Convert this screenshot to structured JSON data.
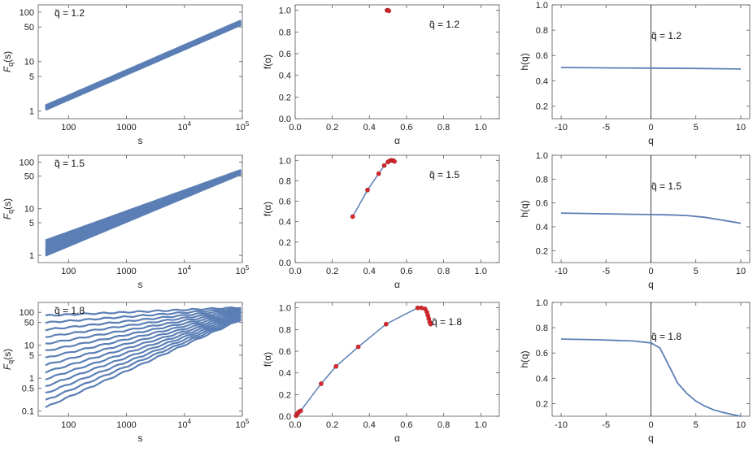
{
  "panels": [
    {
      "type": "line",
      "log": true,
      "row": 0,
      "col": 0,
      "xlabel": "s",
      "ylabel": "F_q(s)",
      "xticks": [
        "100",
        "1000",
        "10^4",
        "10^5"
      ],
      "yticks": [
        "1",
        "5",
        "10",
        "50",
        "100"
      ],
      "xlim": [
        30,
        100000
      ],
      "ylim": [
        0.7,
        140
      ],
      "annotation": "q̃  =  1.2",
      "bundle": {
        "start_low": 1.05,
        "start_high": 1.3,
        "end_low": 55,
        "end_high": 68
      }
    },
    {
      "type": "scatter",
      "row": 0,
      "col": 1,
      "xlabel": "α",
      "ylabel": "f(α)",
      "xticks": [
        "0.0",
        "0.2",
        "0.4",
        "0.6",
        "0.8",
        "1.0"
      ],
      "yticks": [
        "0.0",
        "0.2",
        "0.4",
        "0.6",
        "0.8",
        "1.0"
      ],
      "xlim": [
        0,
        1.1
      ],
      "ylim": [
        0,
        1.05
      ],
      "annotation": "q̃  =  1.2",
      "points": [
        [
          0.495,
          1.0
        ],
        [
          0.5,
          1.0
        ],
        [
          0.505,
          0.995
        ]
      ]
    },
    {
      "type": "line",
      "row": 0,
      "col": 2,
      "xlabel": "q",
      "ylabel": "h(q)",
      "xticks": [
        "-10",
        "-5",
        "0",
        "5",
        "10"
      ],
      "yticks": [
        "0.2",
        "0.4",
        "0.6",
        "0.8",
        "1.0"
      ],
      "xlim": [
        -11,
        11
      ],
      "ylim": [
        0.1,
        1.0
      ],
      "annotation": "q̃  =  1.2",
      "x": [
        -10,
        -5,
        0,
        5,
        10
      ],
      "y": [
        0.505,
        0.502,
        0.5,
        0.497,
        0.493
      ]
    },
    {
      "type": "line",
      "log": true,
      "row": 1,
      "col": 0,
      "xlabel": "s",
      "ylabel": "F_q(s)",
      "xticks": [
        "100",
        "1000",
        "10^4",
        "10^5"
      ],
      "yticks": [
        "1",
        "5",
        "10",
        "50",
        "100"
      ],
      "xlim": [
        30,
        100000
      ],
      "ylim": [
        0.7,
        140
      ],
      "annotation": "q̃  =  1.5",
      "bundle": {
        "start_low": 0.98,
        "start_high": 2.1,
        "end_low": 55,
        "end_high": 68
      }
    },
    {
      "type": "scatter",
      "row": 1,
      "col": 1,
      "xlabel": "α",
      "ylabel": "f(α)",
      "xticks": [
        "0.0",
        "0.2",
        "0.4",
        "0.6",
        "0.8",
        "1.0"
      ],
      "yticks": [
        "0.0",
        "0.2",
        "0.4",
        "0.6",
        "0.8",
        "1.0"
      ],
      "xlim": [
        0,
        1.1
      ],
      "ylim": [
        0,
        1.05
      ],
      "annotation": "q̃  =  1.5",
      "points": [
        [
          0.31,
          0.45
        ],
        [
          0.39,
          0.71
        ],
        [
          0.45,
          0.87
        ],
        [
          0.48,
          0.95
        ],
        [
          0.5,
          0.985
        ],
        [
          0.51,
          0.997
        ],
        [
          0.52,
          1.0
        ],
        [
          0.53,
          0.997
        ],
        [
          0.535,
          0.99
        ]
      ]
    },
    {
      "type": "line",
      "row": 1,
      "col": 2,
      "xlabel": "q",
      "ylabel": "h(q)",
      "xticks": [
        "-10",
        "-5",
        "0",
        "5",
        "10"
      ],
      "yticks": [
        "0.2",
        "0.4",
        "0.6",
        "0.8",
        "1.0"
      ],
      "xlim": [
        -11,
        11
      ],
      "ylim": [
        0.1,
        1.0
      ],
      "annotation": "q̃  =  1.5",
      "x": [
        -10,
        -6,
        -2,
        0,
        2,
        4,
        6,
        8,
        10
      ],
      "y": [
        0.515,
        0.51,
        0.505,
        0.503,
        0.5,
        0.495,
        0.48,
        0.455,
        0.43
      ]
    },
    {
      "type": "line",
      "log": true,
      "row": 2,
      "col": 0,
      "xlabel": "s",
      "ylabel": "F_q(s)",
      "xticks": [
        "100",
        "1000",
        "10^4",
        "10^5"
      ],
      "yticks": [
        "0.1",
        "0.5",
        "1",
        "5",
        "10",
        "50",
        "100"
      ],
      "xlim": [
        30,
        100000
      ],
      "ylim": [
        0.07,
        200
      ],
      "annotation": "q̃  =  1.8",
      "bundle": {
        "start_low": 0.13,
        "start_high": 80,
        "end_low": 60,
        "end_high": 140
      }
    },
    {
      "type": "scatter",
      "row": 2,
      "col": 1,
      "xlabel": "α",
      "ylabel": "f(α)",
      "xticks": [
        "0.0",
        "0.2",
        "0.4",
        "0.6",
        "0.8",
        "1.0"
      ],
      "yticks": [
        "0.0",
        "0.2",
        "0.4",
        "0.6",
        "0.8",
        "1.0"
      ],
      "xlim": [
        0,
        1.1
      ],
      "ylim": [
        0,
        1.05
      ],
      "annotation": "q̃  =  1.8",
      "points": [
        [
          0.005,
          0.005
        ],
        [
          0.01,
          0.02
        ],
        [
          0.015,
          0.03
        ],
        [
          0.02,
          0.04
        ],
        [
          0.03,
          0.05
        ],
        [
          0.14,
          0.3
        ],
        [
          0.22,
          0.46
        ],
        [
          0.34,
          0.64
        ],
        [
          0.49,
          0.85
        ],
        [
          0.66,
          1.0
        ],
        [
          0.68,
          1.0
        ],
        [
          0.7,
          0.99
        ],
        [
          0.71,
          0.96
        ],
        [
          0.715,
          0.93
        ],
        [
          0.72,
          0.9
        ],
        [
          0.725,
          0.87
        ],
        [
          0.73,
          0.85
        ]
      ]
    },
    {
      "type": "line",
      "row": 2,
      "col": 2,
      "xlabel": "q",
      "ylabel": "h(q)",
      "xticks": [
        "-10",
        "-5",
        "0",
        "5",
        "10"
      ],
      "yticks": [
        "0.2",
        "0.4",
        "0.6",
        "0.8",
        "1.0"
      ],
      "xlim": [
        -11,
        11
      ],
      "ylim": [
        0.1,
        1.0
      ],
      "annotation": "q̃  =  1.8",
      "x": [
        -10,
        -6,
        -4,
        -2,
        0,
        1,
        2,
        3,
        4,
        5,
        6,
        7,
        8,
        9,
        10
      ],
      "y": [
        0.71,
        0.705,
        0.7,
        0.695,
        0.68,
        0.64,
        0.5,
        0.36,
        0.28,
        0.22,
        0.18,
        0.15,
        0.13,
        0.115,
        0.1
      ]
    }
  ],
  "chart_data": [
    {
      "type": "line",
      "title": "",
      "xlabel": "s",
      "ylabel": "F_q(s)",
      "annotation": "q̃ = 1.2",
      "x_scale": "log",
      "y_scale": "log",
      "xlim": [
        30,
        100000
      ]
    },
    {
      "type": "scatter",
      "xlabel": "α",
      "ylabel": "f(α)",
      "annotation": "q̃ = 1.2",
      "xlim": [
        0,
        1.1
      ],
      "ylim": [
        0,
        1.05
      ]
    },
    {
      "type": "line",
      "xlabel": "q",
      "ylabel": "h(q)",
      "annotation": "q̃ = 1.2",
      "xlim": [
        -11,
        11
      ],
      "ylim": [
        0.1,
        1.0
      ]
    },
    {
      "type": "line",
      "xlabel": "s",
      "ylabel": "F_q(s)",
      "annotation": "q̃ = 1.5",
      "x_scale": "log",
      "y_scale": "log"
    },
    {
      "type": "scatter",
      "xlabel": "α",
      "ylabel": "f(α)",
      "annotation": "q̃ = 1.5"
    },
    {
      "type": "line",
      "xlabel": "q",
      "ylabel": "h(q)",
      "annotation": "q̃ = 1.5"
    },
    {
      "type": "line",
      "xlabel": "s",
      "ylabel": "F_q(s)",
      "annotation": "q̃ = 1.8",
      "x_scale": "log",
      "y_scale": "log"
    },
    {
      "type": "scatter",
      "xlabel": "α",
      "ylabel": "f(α)",
      "annotation": "q̃ = 1.8"
    },
    {
      "type": "line",
      "xlabel": "q",
      "ylabel": "h(q)",
      "annotation": "q̃ = 1.8"
    }
  ],
  "colors": {
    "line": "#5b7fb5",
    "point": "#d9272e",
    "axis": "#555555"
  }
}
